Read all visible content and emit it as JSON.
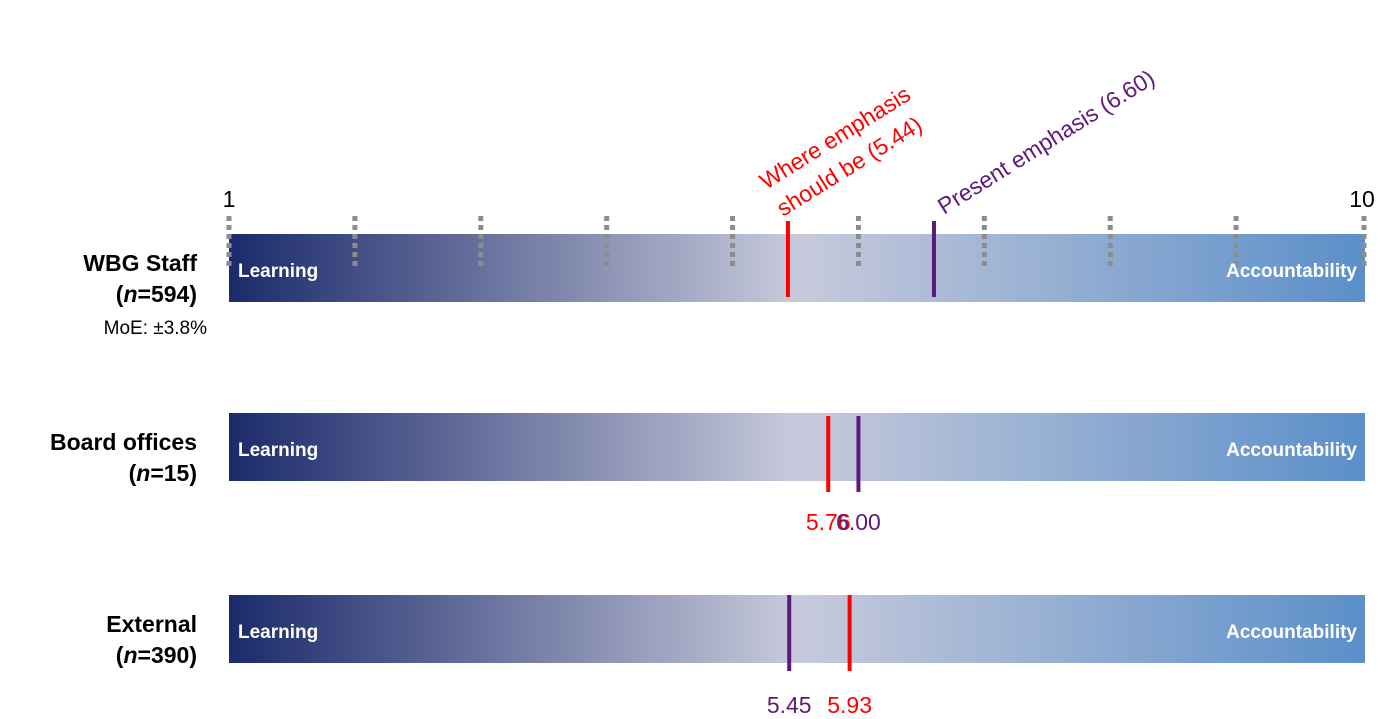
{
  "chart_data": {
    "type": "range-marker",
    "scale": {
      "min": 1,
      "max": 10,
      "min_label": "1",
      "max_label": "10",
      "tick_lines": [
        1,
        2,
        3,
        4,
        5,
        6,
        7,
        8,
        9,
        10
      ]
    },
    "left_label": "Learning",
    "right_label": "Accountability",
    "colors": {
      "gradient": [
        "#1b2a6b",
        "#c7cadb",
        "#5b8fc9"
      ],
      "should": "#ff0000",
      "present": "#5e1a78",
      "tick": "#8c8c8c"
    },
    "groups": [
      {
        "name": "WBG Staff",
        "n_prefix": "(",
        "n_italic": "n",
        "n_value": "=594)",
        "moe": "MoE: ±3.8%",
        "should": 5.44,
        "present": 6.6,
        "should_label": "Where emphasis",
        "should_label_2": "should be (5.44)",
        "present_label": "Present emphasis (6.60)"
      },
      {
        "name": "Board offices",
        "n_prefix": "(",
        "n_italic": "n",
        "n_value": "=15)",
        "should": 5.76,
        "present": 6.0,
        "should_label": "5.76",
        "present_label": "6.00"
      },
      {
        "name": "External",
        "n_prefix": "(",
        "n_italic": "n",
        "n_value": "=390)",
        "should": 5.93,
        "present": 5.45,
        "should_label": "5.93",
        "present_label": "5.45"
      }
    ]
  }
}
